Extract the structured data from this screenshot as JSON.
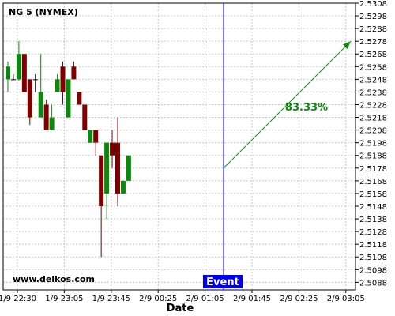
{
  "chart_data": {
    "type": "candlestick",
    "title": "NG 5 (NYMEX)",
    "xlabel": "Date",
    "watermark": "www.delkos.com",
    "event_label": "Event",
    "projection_label": "83.33%",
    "x_ticks": [
      "1/9 22:30",
      "1/9 23:05",
      "1/9 23:45",
      "2/9 00:25",
      "2/9 01:05",
      "2/9 01:45",
      "2/9 02:25",
      "2/9 03:05"
    ],
    "y_ticks": [
      2.5088,
      2.5098,
      2.5108,
      2.5118,
      2.5128,
      2.5138,
      2.5148,
      2.5158,
      2.5168,
      2.5178,
      2.5188,
      2.5198,
      2.5208,
      2.5218,
      2.5228,
      2.5238,
      2.5248,
      2.5258,
      2.5268,
      2.5278,
      2.5288,
      2.5298,
      2.5308
    ],
    "ylim": [
      2.5082,
      2.5308
    ],
    "grid": true,
    "candles": [
      {
        "o": 2.5248,
        "h": 2.5262,
        "l": 2.5238,
        "c": 2.5258
      },
      {
        "o": 2.5248,
        "h": 2.5252,
        "l": 2.5248,
        "c": 2.5248
      },
      {
        "o": 2.5248,
        "h": 2.5278,
        "l": 2.5247,
        "c": 2.5268
      },
      {
        "o": 2.5268,
        "h": 2.5268,
        "l": 2.5238,
        "c": 2.5238
      },
      {
        "o": 2.5248,
        "h": 2.5248,
        "l": 2.5212,
        "c": 2.5218
      },
      {
        "o": 2.5248,
        "h": 2.5252,
        "l": 2.5238,
        "c": 2.5248
      },
      {
        "o": 2.5218,
        "h": 2.5268,
        "l": 2.5218,
        "c": 2.5238
      },
      {
        "o": 2.5228,
        "h": 2.5232,
        "l": 2.5208,
        "c": 2.5208
      },
      {
        "o": 2.5208,
        "h": 2.5228,
        "l": 2.5208,
        "c": 2.5218
      },
      {
        "o": 2.5238,
        "h": 2.5252,
        "l": 2.5238,
        "c": 2.5248
      },
      {
        "o": 2.5258,
        "h": 2.5262,
        "l": 2.5228,
        "c": 2.5238
      },
      {
        "o": 2.5218,
        "h": 2.5248,
        "l": 2.5218,
        "c": 2.5248
      },
      {
        "o": 2.5258,
        "h": 2.5262,
        "l": 2.5248,
        "c": 2.5248
      },
      {
        "o": 2.5238,
        "h": 2.5238,
        "l": 2.5228,
        "c": 2.5228
      },
      {
        "o": 2.5228,
        "h": 2.5228,
        "l": 2.5208,
        "c": 2.5208
      },
      {
        "o": 2.5198,
        "h": 2.5208,
        "l": 2.5198,
        "c": 2.5208
      },
      {
        "o": 2.5208,
        "h": 2.5208,
        "l": 2.5188,
        "c": 2.5198
      },
      {
        "o": 2.5188,
        "h": 2.5188,
        "l": 2.5108,
        "c": 2.5148
      },
      {
        "o": 2.5158,
        "h": 2.5198,
        "l": 2.5138,
        "c": 2.5198
      },
      {
        "o": 2.5198,
        "h": 2.5208,
        "l": 2.5178,
        "c": 2.5188
      },
      {
        "o": 2.5198,
        "h": 2.5218,
        "l": 2.5148,
        "c": 2.5158
      },
      {
        "o": 2.5158,
        "h": 2.5168,
        "l": 2.5158,
        "c": 2.5168
      },
      {
        "o": 2.5168,
        "h": 2.5188,
        "l": 2.5168,
        "c": 2.5188
      }
    ],
    "event_position": "between 2/9 01:05 and 2/9 01:45",
    "projection": {
      "from": 2.5178,
      "to": 2.5278
    },
    "colors": {
      "up": "#0a8a0a",
      "down": "#800000",
      "event_line": "#0000cc",
      "event_box": "#0000ee",
      "grid": "#c8c8c8",
      "projection": "#0a8a0a"
    }
  }
}
